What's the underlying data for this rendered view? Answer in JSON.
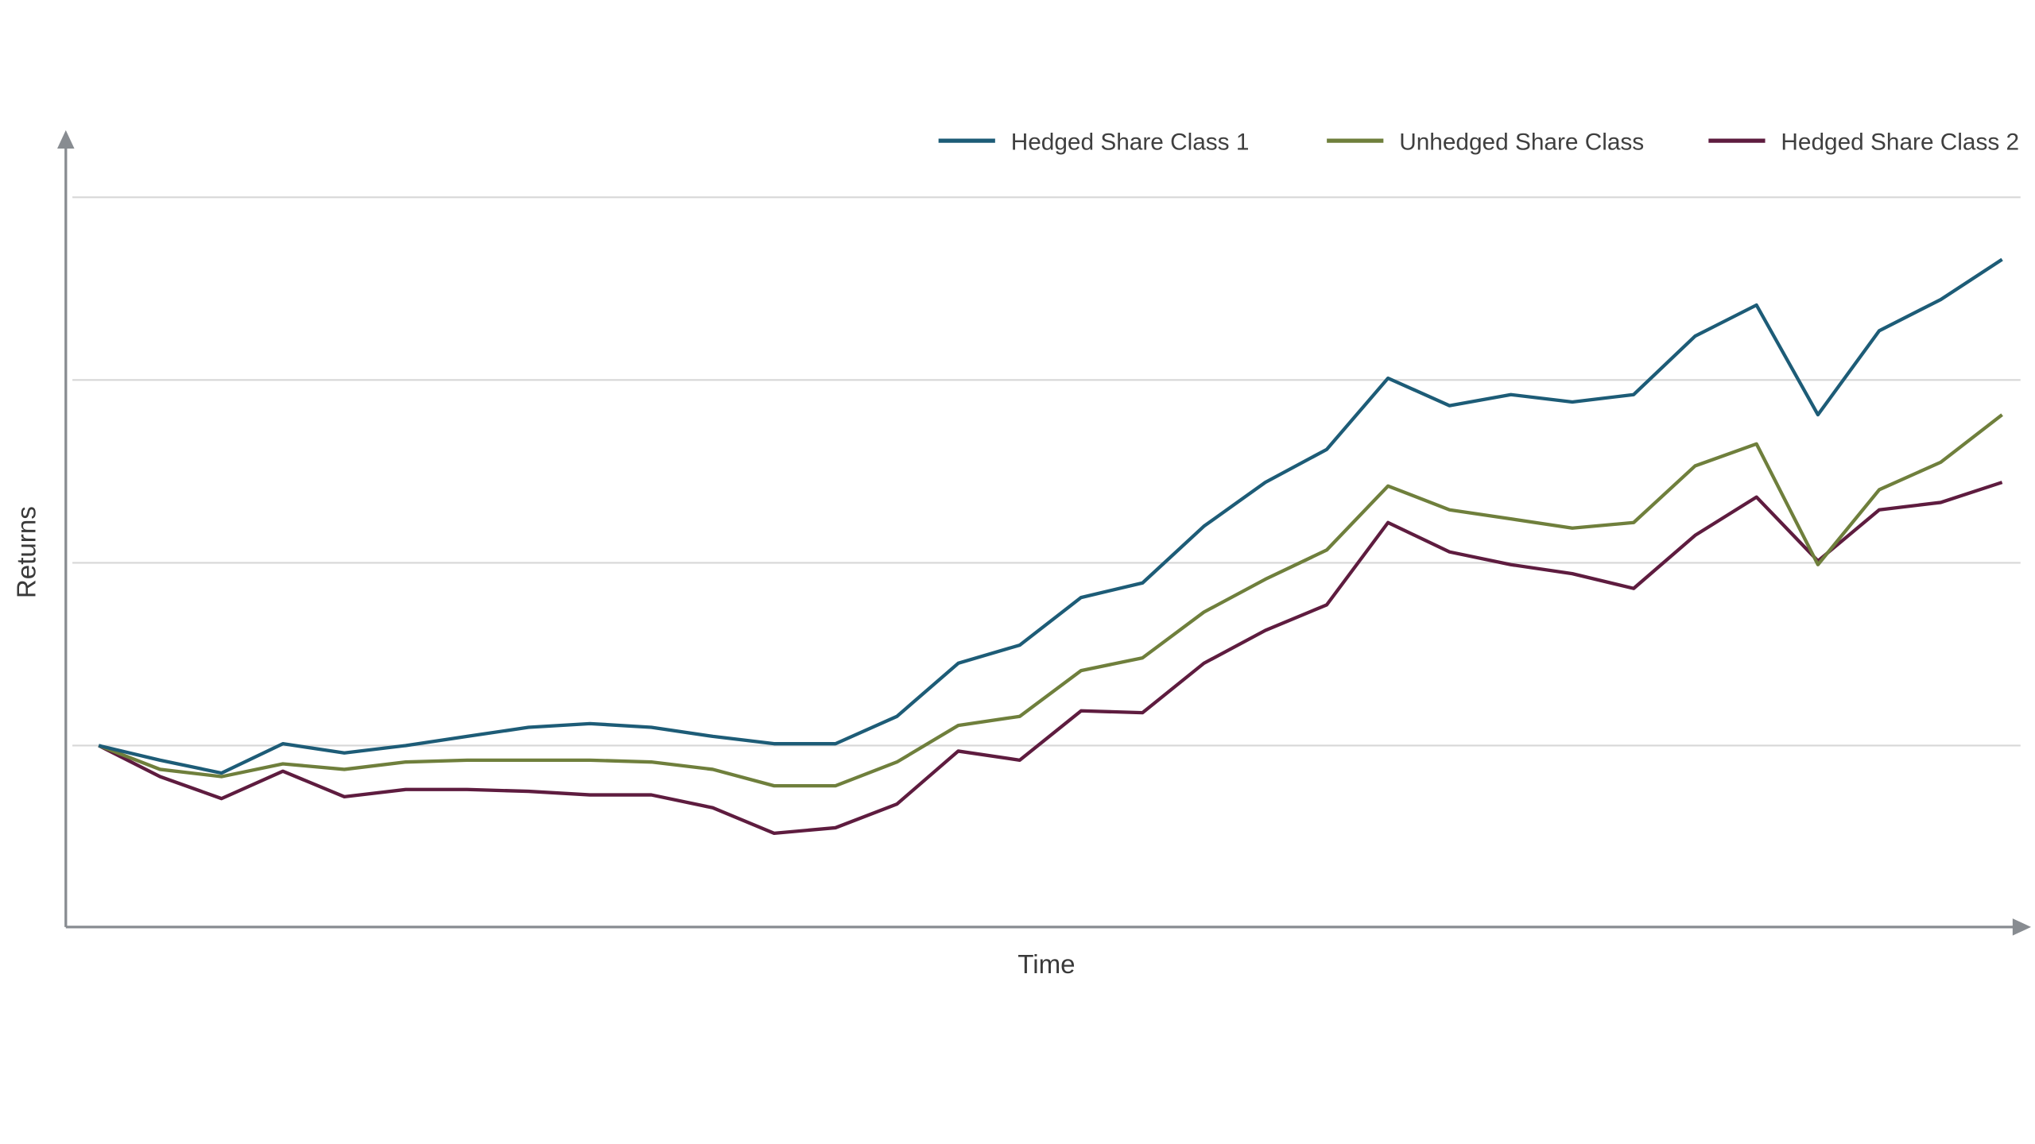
{
  "chart_data": {
    "type": "line",
    "title": "",
    "xlabel": "Time",
    "ylabel": "Returns",
    "tick_labels_visible": false,
    "grid": "horizontal-only",
    "legend_position": "top-right",
    "y_gridline_values": [
      0,
      1,
      2,
      3
    ],
    "ylim": [
      -1,
      3.3
    ],
    "x_note": "32 evenly spaced unlabeled time points",
    "series": [
      {
        "name": "Hedged Share Class 1",
        "color": "#1d5c77",
        "values": [
          0,
          -0.08,
          -0.15,
          0.01,
          -0.04,
          0,
          0.05,
          0.1,
          0.12,
          0.1,
          0.05,
          0.01,
          0.01,
          0.16,
          0.45,
          0.55,
          0.81,
          0.89,
          1.2,
          1.44,
          1.62,
          2.01,
          1.86,
          1.92,
          1.88,
          1.92,
          2.24,
          2.41,
          1.81,
          2.27,
          2.44,
          2.66
        ]
      },
      {
        "name": "Unhedged Share Class",
        "color": "#6f7f3c",
        "values": [
          0,
          -0.13,
          -0.17,
          -0.1,
          -0.13,
          -0.09,
          -0.08,
          -0.08,
          -0.08,
          -0.09,
          -0.13,
          -0.22,
          -0.22,
          -0.09,
          0.11,
          0.16,
          0.41,
          0.48,
          0.73,
          0.91,
          1.07,
          1.42,
          1.29,
          1.24,
          1.19,
          1.22,
          1.53,
          1.65,
          0.99,
          1.4,
          1.55,
          1.81
        ]
      },
      {
        "name": "Hedged Share Class 2",
        "color": "#5e1c3f",
        "values": [
          0,
          -0.17,
          -0.29,
          -0.14,
          -0.28,
          -0.24,
          -0.24,
          -0.25,
          -0.27,
          -0.27,
          -0.34,
          -0.48,
          -0.45,
          -0.32,
          -0.03,
          -0.08,
          0.19,
          0.18,
          0.45,
          0.63,
          0.77,
          1.22,
          1.06,
          0.99,
          0.94,
          0.86,
          1.15,
          1.36,
          1.01,
          1.29,
          1.33,
          1.44
        ]
      }
    ]
  },
  "colors": {
    "background": "#ffffff",
    "gridline": "#d7d7d7",
    "axis": "#888c91",
    "text": "#3a3a3a",
    "legend_text": "#3f3f3f"
  }
}
